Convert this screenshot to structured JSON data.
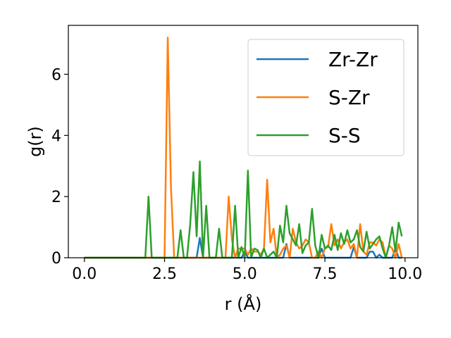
{
  "chart_data": {
    "type": "line",
    "title": "",
    "xlabel": "r (Å)",
    "ylabel": "g(r)",
    "xlim": [
      -0.5,
      10.4
    ],
    "ylim": [
      0,
      7.6
    ],
    "xticks": [
      0.0,
      2.5,
      5.0,
      7.5,
      10.0
    ],
    "xtick_labels": [
      "0.0",
      "2.5",
      "5.0",
      "7.5",
      "10.0"
    ],
    "yticks": [
      0,
      2,
      4,
      6
    ],
    "ytick_labels": [
      "0",
      "2",
      "4",
      "6"
    ],
    "grid": false,
    "legend_position": "top-right",
    "series": [
      {
        "name": "Zr-Zr",
        "color": "#1f77b4",
        "x": [
          0.0,
          3.3,
          3.4,
          3.5,
          3.6,
          3.7,
          3.8,
          4.9,
          5.0,
          5.1,
          5.2,
          6.1,
          6.2,
          6.3,
          6.4,
          6.5,
          7.3,
          7.4,
          7.5,
          7.6,
          8.3,
          8.4,
          8.5,
          8.8,
          8.9,
          9.0,
          9.1,
          9.2,
          9.3,
          9.6,
          9.7,
          9.8,
          9.9
        ],
        "y": [
          0.0,
          0.0,
          0.0,
          0.0,
          0.65,
          0.0,
          0.0,
          0.0,
          0.2,
          0.0,
          0.0,
          0.0,
          0.0,
          0.45,
          0.0,
          0.0,
          0.0,
          0.3,
          0.0,
          0.0,
          0.0,
          0.35,
          0.0,
          0.0,
          0.2,
          0.2,
          0.0,
          0.1,
          0.0,
          0.0,
          0.3,
          0.0,
          0.0
        ]
      },
      {
        "name": "S-Zr",
        "color": "#ff7f0e",
        "x": [
          0.0,
          2.5,
          2.6,
          2.7,
          2.8,
          4.4,
          4.5,
          4.6,
          4.7,
          4.8,
          5.0,
          5.1,
          5.2,
          5.3,
          5.4,
          5.5,
          5.6,
          5.7,
          5.8,
          5.9,
          6.0,
          6.1,
          6.2,
          6.3,
          6.4,
          6.5,
          6.6,
          6.7,
          6.8,
          6.9,
          7.0,
          7.1,
          7.2,
          7.3,
          7.4,
          7.5,
          7.6,
          7.7,
          7.8,
          7.9,
          8.0,
          8.1,
          8.2,
          8.3,
          8.4,
          8.5,
          8.6,
          8.7,
          8.8,
          8.9,
          9.0,
          9.1,
          9.2,
          9.3,
          9.4,
          9.5,
          9.6,
          9.7,
          9.8,
          9.9
        ],
        "y": [
          0.0,
          0.0,
          7.2,
          2.3,
          0.0,
          0.0,
          2.0,
          0.6,
          0.0,
          0.3,
          0.3,
          0.1,
          0.3,
          0.2,
          0.2,
          0.1,
          0.3,
          2.55,
          0.5,
          0.95,
          0.0,
          0.1,
          0.3,
          0.4,
          0.0,
          0.95,
          0.5,
          0.3,
          0.4,
          0.6,
          0.5,
          0.0,
          0.0,
          0.2,
          0.0,
          0.3,
          0.35,
          1.1,
          0.4,
          0.6,
          0.3,
          0.5,
          0.6,
          0.3,
          0.45,
          0.0,
          1.1,
          0.2,
          0.1,
          0.5,
          0.5,
          0.4,
          0.6,
          0.5,
          0.0,
          0.4,
          0.3,
          0.0,
          0.45,
          0.0
        ]
      },
      {
        "name": "S-S",
        "color": "#2ca02c",
        "x": [
          0.0,
          1.9,
          2.0,
          2.1,
          2.9,
          3.0,
          3.1,
          3.2,
          3.3,
          3.4,
          3.5,
          3.6,
          3.7,
          3.8,
          3.9,
          4.1,
          4.2,
          4.3,
          4.5,
          4.6,
          4.7,
          4.8,
          4.9,
          5.0,
          5.1,
          5.2,
          5.3,
          5.4,
          5.5,
          5.6,
          5.7,
          5.8,
          5.9,
          6.0,
          6.1,
          6.2,
          6.3,
          6.4,
          6.5,
          6.6,
          6.7,
          6.8,
          6.9,
          7.0,
          7.1,
          7.2,
          7.3,
          7.4,
          7.5,
          7.6,
          7.7,
          7.8,
          7.9,
          8.0,
          8.1,
          8.2,
          8.3,
          8.4,
          8.5,
          8.6,
          8.7,
          8.8,
          8.9,
          9.0,
          9.1,
          9.2,
          9.3,
          9.4,
          9.5,
          9.6,
          9.7,
          9.8,
          9.9
        ],
        "y": [
          0.0,
          0.0,
          2.0,
          0.0,
          0.0,
          0.9,
          0.0,
          0.0,
          1.1,
          2.8,
          0.7,
          3.15,
          0.0,
          1.7,
          0.0,
          0.0,
          0.95,
          0.0,
          0.0,
          0.0,
          1.7,
          0.0,
          0.35,
          0.0,
          2.85,
          0.0,
          0.3,
          0.25,
          0.0,
          0.3,
          0.0,
          0.1,
          0.2,
          0.0,
          1.05,
          0.5,
          1.7,
          0.8,
          0.6,
          0.4,
          1.1,
          0.15,
          0.4,
          0.5,
          1.6,
          0.4,
          0.0,
          0.75,
          0.3,
          0.4,
          0.25,
          0.75,
          0.25,
          0.8,
          0.45,
          0.9,
          0.5,
          0.6,
          0.9,
          0.35,
          0.2,
          0.85,
          0.3,
          0.45,
          0.6,
          0.7,
          0.3,
          0.0,
          0.4,
          1.0,
          0.2,
          1.15,
          0.7
        ]
      }
    ]
  }
}
